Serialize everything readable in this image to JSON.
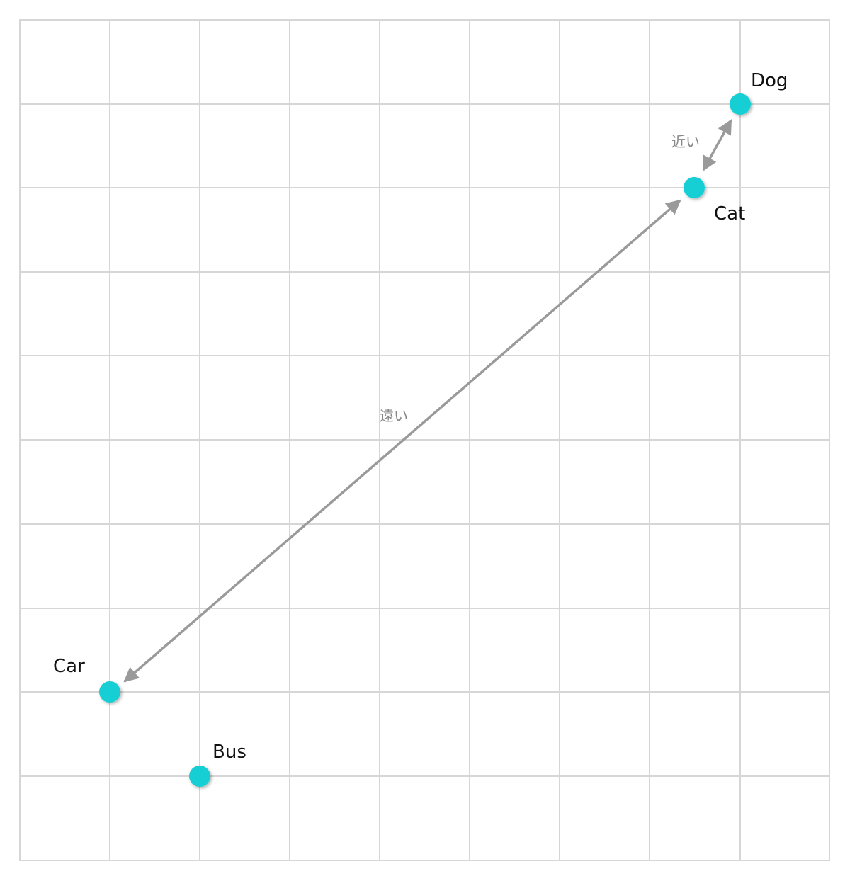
{
  "nodes": [
    {
      "label": "Dog"
    },
    {
      "label": "Cat"
    },
    {
      "label": "Car"
    },
    {
      "label": "Bus"
    }
  ],
  "edges": [
    {
      "label": "近い"
    },
    {
      "label": "遠い"
    }
  ]
}
